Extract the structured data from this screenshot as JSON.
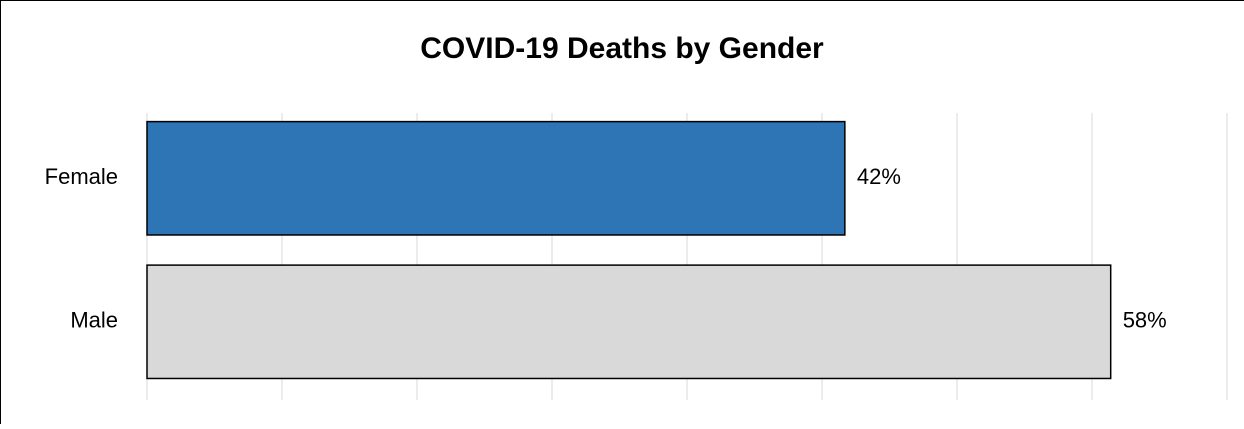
{
  "chart_data": {
    "type": "bar",
    "orientation": "horizontal",
    "title": "COVID-19 Deaths by Gender",
    "categories": [
      "Female",
      "Male"
    ],
    "values": [
      42,
      58
    ],
    "value_labels": [
      "42%",
      "58%"
    ],
    "colors": [
      "#2e75b6",
      "#d9d9d9"
    ],
    "xlim": [
      0,
      65
    ],
    "xticks": [
      0,
      8.125,
      16.25,
      24.375,
      32.5,
      40.625,
      48.75,
      56.875,
      65
    ],
    "grid": true
  }
}
